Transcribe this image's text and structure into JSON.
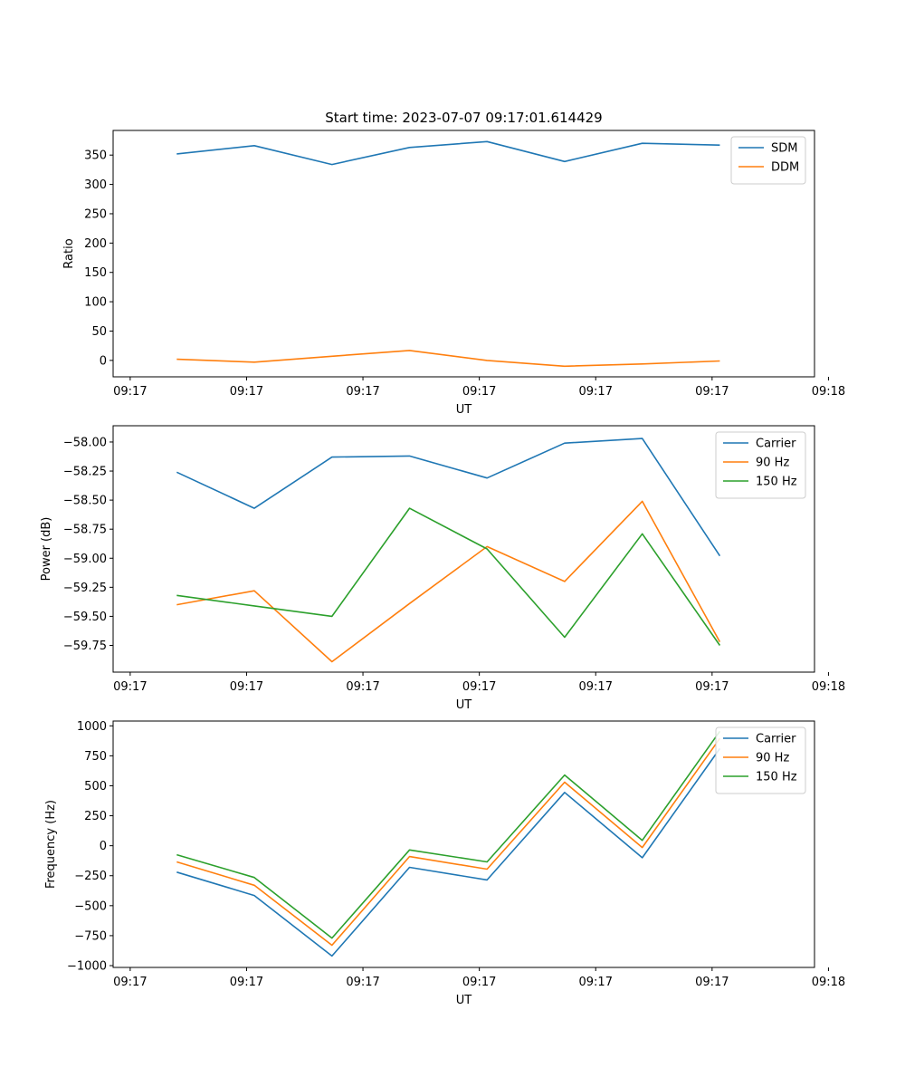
{
  "chart_data": [
    {
      "type": "line",
      "title": "Start time: 2023-07-07 09:17:01.614429",
      "xlabel": "UT",
      "ylabel": "Ratio",
      "xticks": [
        "09:17",
        "09:17",
        "09:17",
        "09:17",
        "09:17",
        "09:17",
        "09:18"
      ],
      "x": [
        1,
        2,
        3,
        4,
        5,
        6,
        7,
        8
      ],
      "xlim": [
        0.18,
        9.22
      ],
      "xtick_values": [
        0.4,
        1.9,
        3.4,
        4.9,
        6.4,
        7.9,
        9.4
      ],
      "ylim": [
        -28,
        392
      ],
      "yticks": [
        0,
        50,
        100,
        150,
        200,
        250,
        300,
        350
      ],
      "legend_position": "top-right",
      "series": [
        {
          "name": "SDM",
          "color": "#1f77b4",
          "values": [
            352,
            366,
            334,
            363,
            373,
            339,
            370,
            367
          ]
        },
        {
          "name": "DDM",
          "color": "#ff7f0e",
          "values": [
            2,
            -3,
            7,
            17,
            0,
            -10,
            -6,
            -1
          ]
        }
      ]
    },
    {
      "type": "line",
      "title": "",
      "xlabel": "UT",
      "ylabel": "Power (dB)",
      "xticks": [
        "09:17",
        "09:17",
        "09:17",
        "09:17",
        "09:17",
        "09:17",
        "09:18"
      ],
      "x": [
        1,
        2,
        3,
        4,
        5,
        6,
        7,
        8
      ],
      "xlim": [
        0.18,
        9.22
      ],
      "xtick_values": [
        0.4,
        1.9,
        3.4,
        4.9,
        6.4,
        7.9,
        9.4
      ],
      "ylim": [
        -59.98,
        -57.86
      ],
      "yticks": [
        -59.75,
        -59.5,
        -59.25,
        -59.0,
        -58.75,
        -58.5,
        -58.25,
        -58.0
      ],
      "ytick_labels": [
        "−59.75",
        "−59.50",
        "−59.25",
        "−59.00",
        "−58.75",
        "−58.50",
        "−58.25",
        "−58.00"
      ],
      "legend_position": "top-right",
      "series": [
        {
          "name": "Carrier",
          "color": "#1f77b4",
          "values": [
            -58.26,
            -58.57,
            -58.13,
            -58.12,
            -58.31,
            -58.01,
            -57.97,
            -58.98
          ]
        },
        {
          "name": "90 Hz",
          "color": "#ff7f0e",
          "values": [
            -59.4,
            -59.28,
            -59.89,
            -59.39,
            -58.9,
            -59.2,
            -58.51,
            -59.72
          ]
        },
        {
          "name": "150 Hz",
          "color": "#2ca02c",
          "values": [
            -59.32,
            -59.41,
            -59.5,
            -58.57,
            -58.92,
            -59.68,
            -58.79,
            -59.75
          ]
        }
      ]
    },
    {
      "type": "line",
      "title": "",
      "xlabel": "UT",
      "ylabel": "Frequency (Hz)",
      "xticks": [
        "09:17",
        "09:17",
        "09:17",
        "09:17",
        "09:17",
        "09:17",
        "09:18"
      ],
      "x": [
        1,
        2,
        3,
        4,
        5,
        6,
        7,
        8
      ],
      "xlim": [
        0.18,
        9.22
      ],
      "xtick_values": [
        0.4,
        1.9,
        3.4,
        4.9,
        6.4,
        7.9,
        9.4
      ],
      "ylim": [
        -1015,
        1040
      ],
      "yticks": [
        -1000,
        -750,
        -500,
        -250,
        0,
        250,
        500,
        750,
        1000
      ],
      "ytick_labels": [
        "−1000",
        "−750",
        "−500",
        "−250",
        "0",
        "250",
        "500",
        "750",
        "1000"
      ],
      "legend_position": "top-right",
      "series": [
        {
          "name": "Carrier",
          "color": "#1f77b4",
          "values": [
            -220,
            -415,
            -920,
            -180,
            -285,
            445,
            -100,
            810
          ]
        },
        {
          "name": "90 Hz",
          "color": "#ff7f0e",
          "values": [
            -135,
            -330,
            -830,
            -90,
            -195,
            530,
            -15,
            895
          ]
        },
        {
          "name": "150 Hz",
          "color": "#2ca02c",
          "values": [
            -75,
            -265,
            -770,
            -35,
            -135,
            590,
            45,
            955
          ]
        }
      ]
    }
  ]
}
